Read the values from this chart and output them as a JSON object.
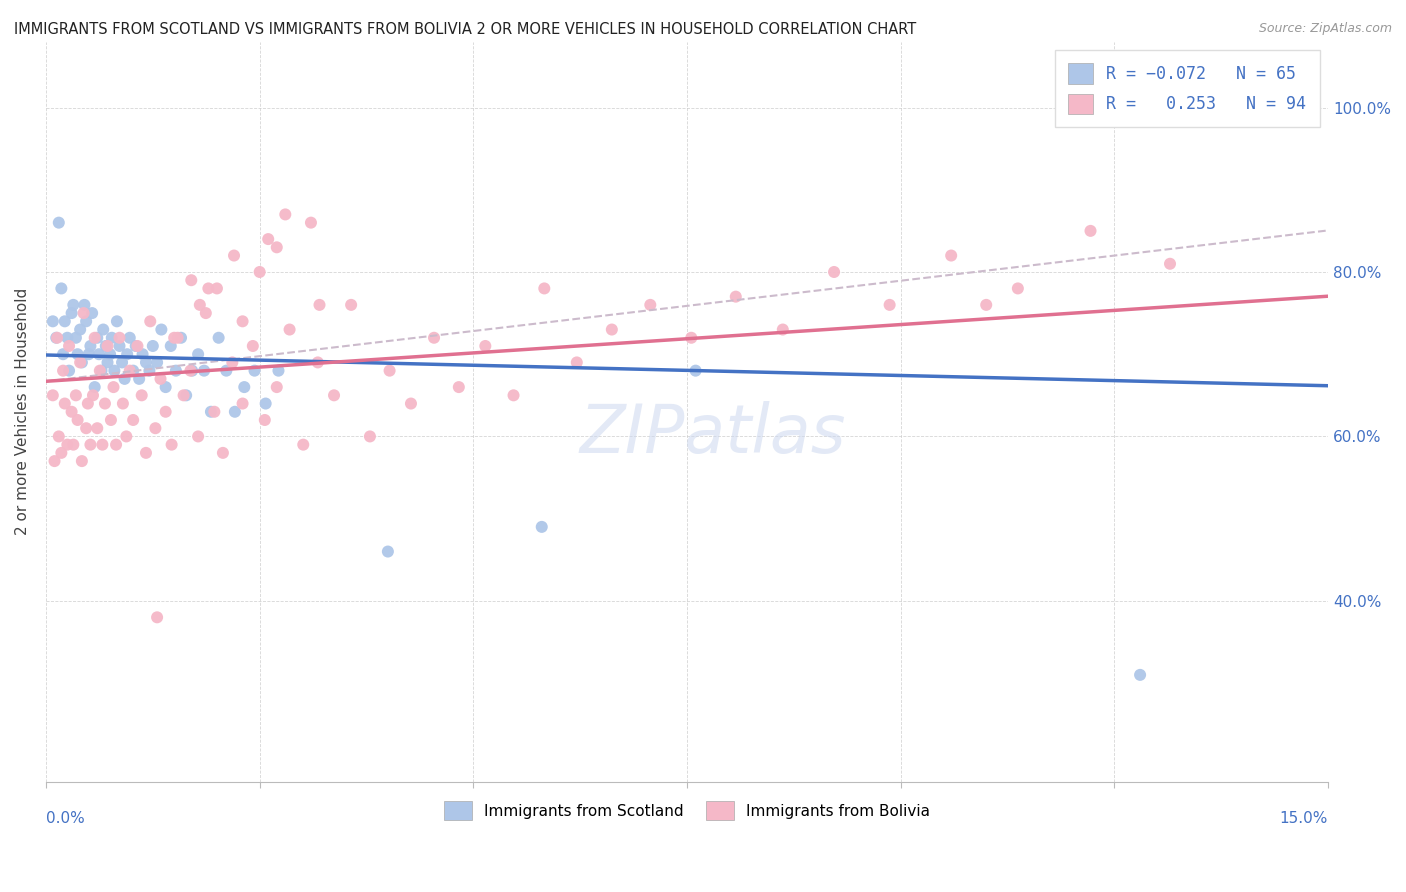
{
  "title": "IMMIGRANTS FROM SCOTLAND VS IMMIGRANTS FROM BOLIVIA 2 OR MORE VEHICLES IN HOUSEHOLD CORRELATION CHART",
  "source": "Source: ZipAtlas.com",
  "ylabel": "2 or more Vehicles in Household",
  "xlim": [
    0.0,
    0.15
  ],
  "ylim": [
    0.18,
    1.08
  ],
  "scotland_R": -0.072,
  "scotland_N": 65,
  "bolivia_R": 0.253,
  "bolivia_N": 94,
  "scotland_color": "#aec6e8",
  "bolivia_color": "#f5b8c8",
  "scotland_line_color": "#4472c4",
  "bolivia_line_color": "#e07090",
  "dashed_line_color": "#ccbbcc",
  "yticks": [
    0.4,
    0.6,
    0.8,
    1.0
  ],
  "ytick_labels": [
    "40.0%",
    "60.0%",
    "80.0%",
    "100.0%"
  ],
  "scotland_x": [
    0.0008,
    0.0012,
    0.0015,
    0.0018,
    0.002,
    0.0022,
    0.0025,
    0.0027,
    0.003,
    0.0032,
    0.0035,
    0.0037,
    0.004,
    0.0042,
    0.0045,
    0.0047,
    0.005,
    0.0052,
    0.0054,
    0.0057,
    0.006,
    0.0062,
    0.0065,
    0.0067,
    0.007,
    0.0072,
    0.0075,
    0.0077,
    0.008,
    0.0083,
    0.0086,
    0.0089,
    0.0092,
    0.0095,
    0.0098,
    0.0102,
    0.0105,
    0.0109,
    0.0113,
    0.0117,
    0.0121,
    0.0125,
    0.013,
    0.0135,
    0.014,
    0.0146,
    0.0152,
    0.0158,
    0.0164,
    0.0171,
    0.0178,
    0.0185,
    0.0193,
    0.0202,
    0.0211,
    0.0221,
    0.0232,
    0.0244,
    0.0257,
    0.0272,
    0.04,
    0.058,
    0.076,
    0.128,
    0.129
  ],
  "scotland_y": [
    0.74,
    0.72,
    0.86,
    0.78,
    0.7,
    0.74,
    0.72,
    0.68,
    0.75,
    0.76,
    0.72,
    0.7,
    0.73,
    0.69,
    0.76,
    0.74,
    0.7,
    0.71,
    0.75,
    0.66,
    0.72,
    0.7,
    0.68,
    0.73,
    0.71,
    0.69,
    0.7,
    0.72,
    0.68,
    0.74,
    0.71,
    0.69,
    0.67,
    0.7,
    0.72,
    0.68,
    0.71,
    0.67,
    0.7,
    0.69,
    0.68,
    0.71,
    0.69,
    0.73,
    0.66,
    0.71,
    0.68,
    0.72,
    0.65,
    0.68,
    0.7,
    0.68,
    0.63,
    0.72,
    0.68,
    0.63,
    0.66,
    0.68,
    0.64,
    0.68,
    0.46,
    0.49,
    0.68,
    0.31,
    1.01
  ],
  "bolivia_x": [
    0.0008,
    0.001,
    0.0013,
    0.0015,
    0.0018,
    0.002,
    0.0022,
    0.0025,
    0.0027,
    0.003,
    0.0032,
    0.0035,
    0.0037,
    0.004,
    0.0042,
    0.0044,
    0.0047,
    0.0049,
    0.0052,
    0.0055,
    0.0057,
    0.006,
    0.0063,
    0.0066,
    0.0069,
    0.0072,
    0.0076,
    0.0079,
    0.0082,
    0.0086,
    0.009,
    0.0094,
    0.0098,
    0.0102,
    0.0107,
    0.0112,
    0.0117,
    0.0122,
    0.0128,
    0.0134,
    0.014,
    0.0147,
    0.0154,
    0.0161,
    0.0169,
    0.0178,
    0.0187,
    0.0197,
    0.0207,
    0.0218,
    0.023,
    0.0242,
    0.0256,
    0.027,
    0.0285,
    0.0301,
    0.0318,
    0.0337,
    0.0357,
    0.0379,
    0.0402,
    0.0427,
    0.0454,
    0.0483,
    0.0514,
    0.0547,
    0.0583,
    0.0621,
    0.0662,
    0.0707,
    0.0755,
    0.0807,
    0.0862,
    0.0922,
    0.0987,
    0.1059,
    0.1137,
    0.1222,
    0.1315,
    0.11,
    0.022,
    0.028,
    0.018,
    0.015,
    0.025,
    0.031,
    0.019,
    0.023,
    0.017,
    0.027,
    0.032,
    0.02,
    0.026,
    0.013
  ],
  "bolivia_y": [
    0.65,
    0.57,
    0.72,
    0.6,
    0.58,
    0.68,
    0.64,
    0.59,
    0.71,
    0.63,
    0.59,
    0.65,
    0.62,
    0.69,
    0.57,
    0.75,
    0.61,
    0.64,
    0.59,
    0.65,
    0.72,
    0.61,
    0.68,
    0.59,
    0.64,
    0.71,
    0.62,
    0.66,
    0.59,
    0.72,
    0.64,
    0.6,
    0.68,
    0.62,
    0.71,
    0.65,
    0.58,
    0.74,
    0.61,
    0.67,
    0.63,
    0.59,
    0.72,
    0.65,
    0.68,
    0.6,
    0.75,
    0.63,
    0.58,
    0.69,
    0.64,
    0.71,
    0.62,
    0.66,
    0.73,
    0.59,
    0.69,
    0.65,
    0.76,
    0.6,
    0.68,
    0.64,
    0.72,
    0.66,
    0.71,
    0.65,
    0.78,
    0.69,
    0.73,
    0.76,
    0.72,
    0.77,
    0.73,
    0.8,
    0.76,
    0.82,
    0.78,
    0.85,
    0.81,
    0.76,
    0.82,
    0.87,
    0.76,
    0.72,
    0.8,
    0.86,
    0.78,
    0.74,
    0.79,
    0.83,
    0.76,
    0.78,
    0.84,
    0.38
  ]
}
